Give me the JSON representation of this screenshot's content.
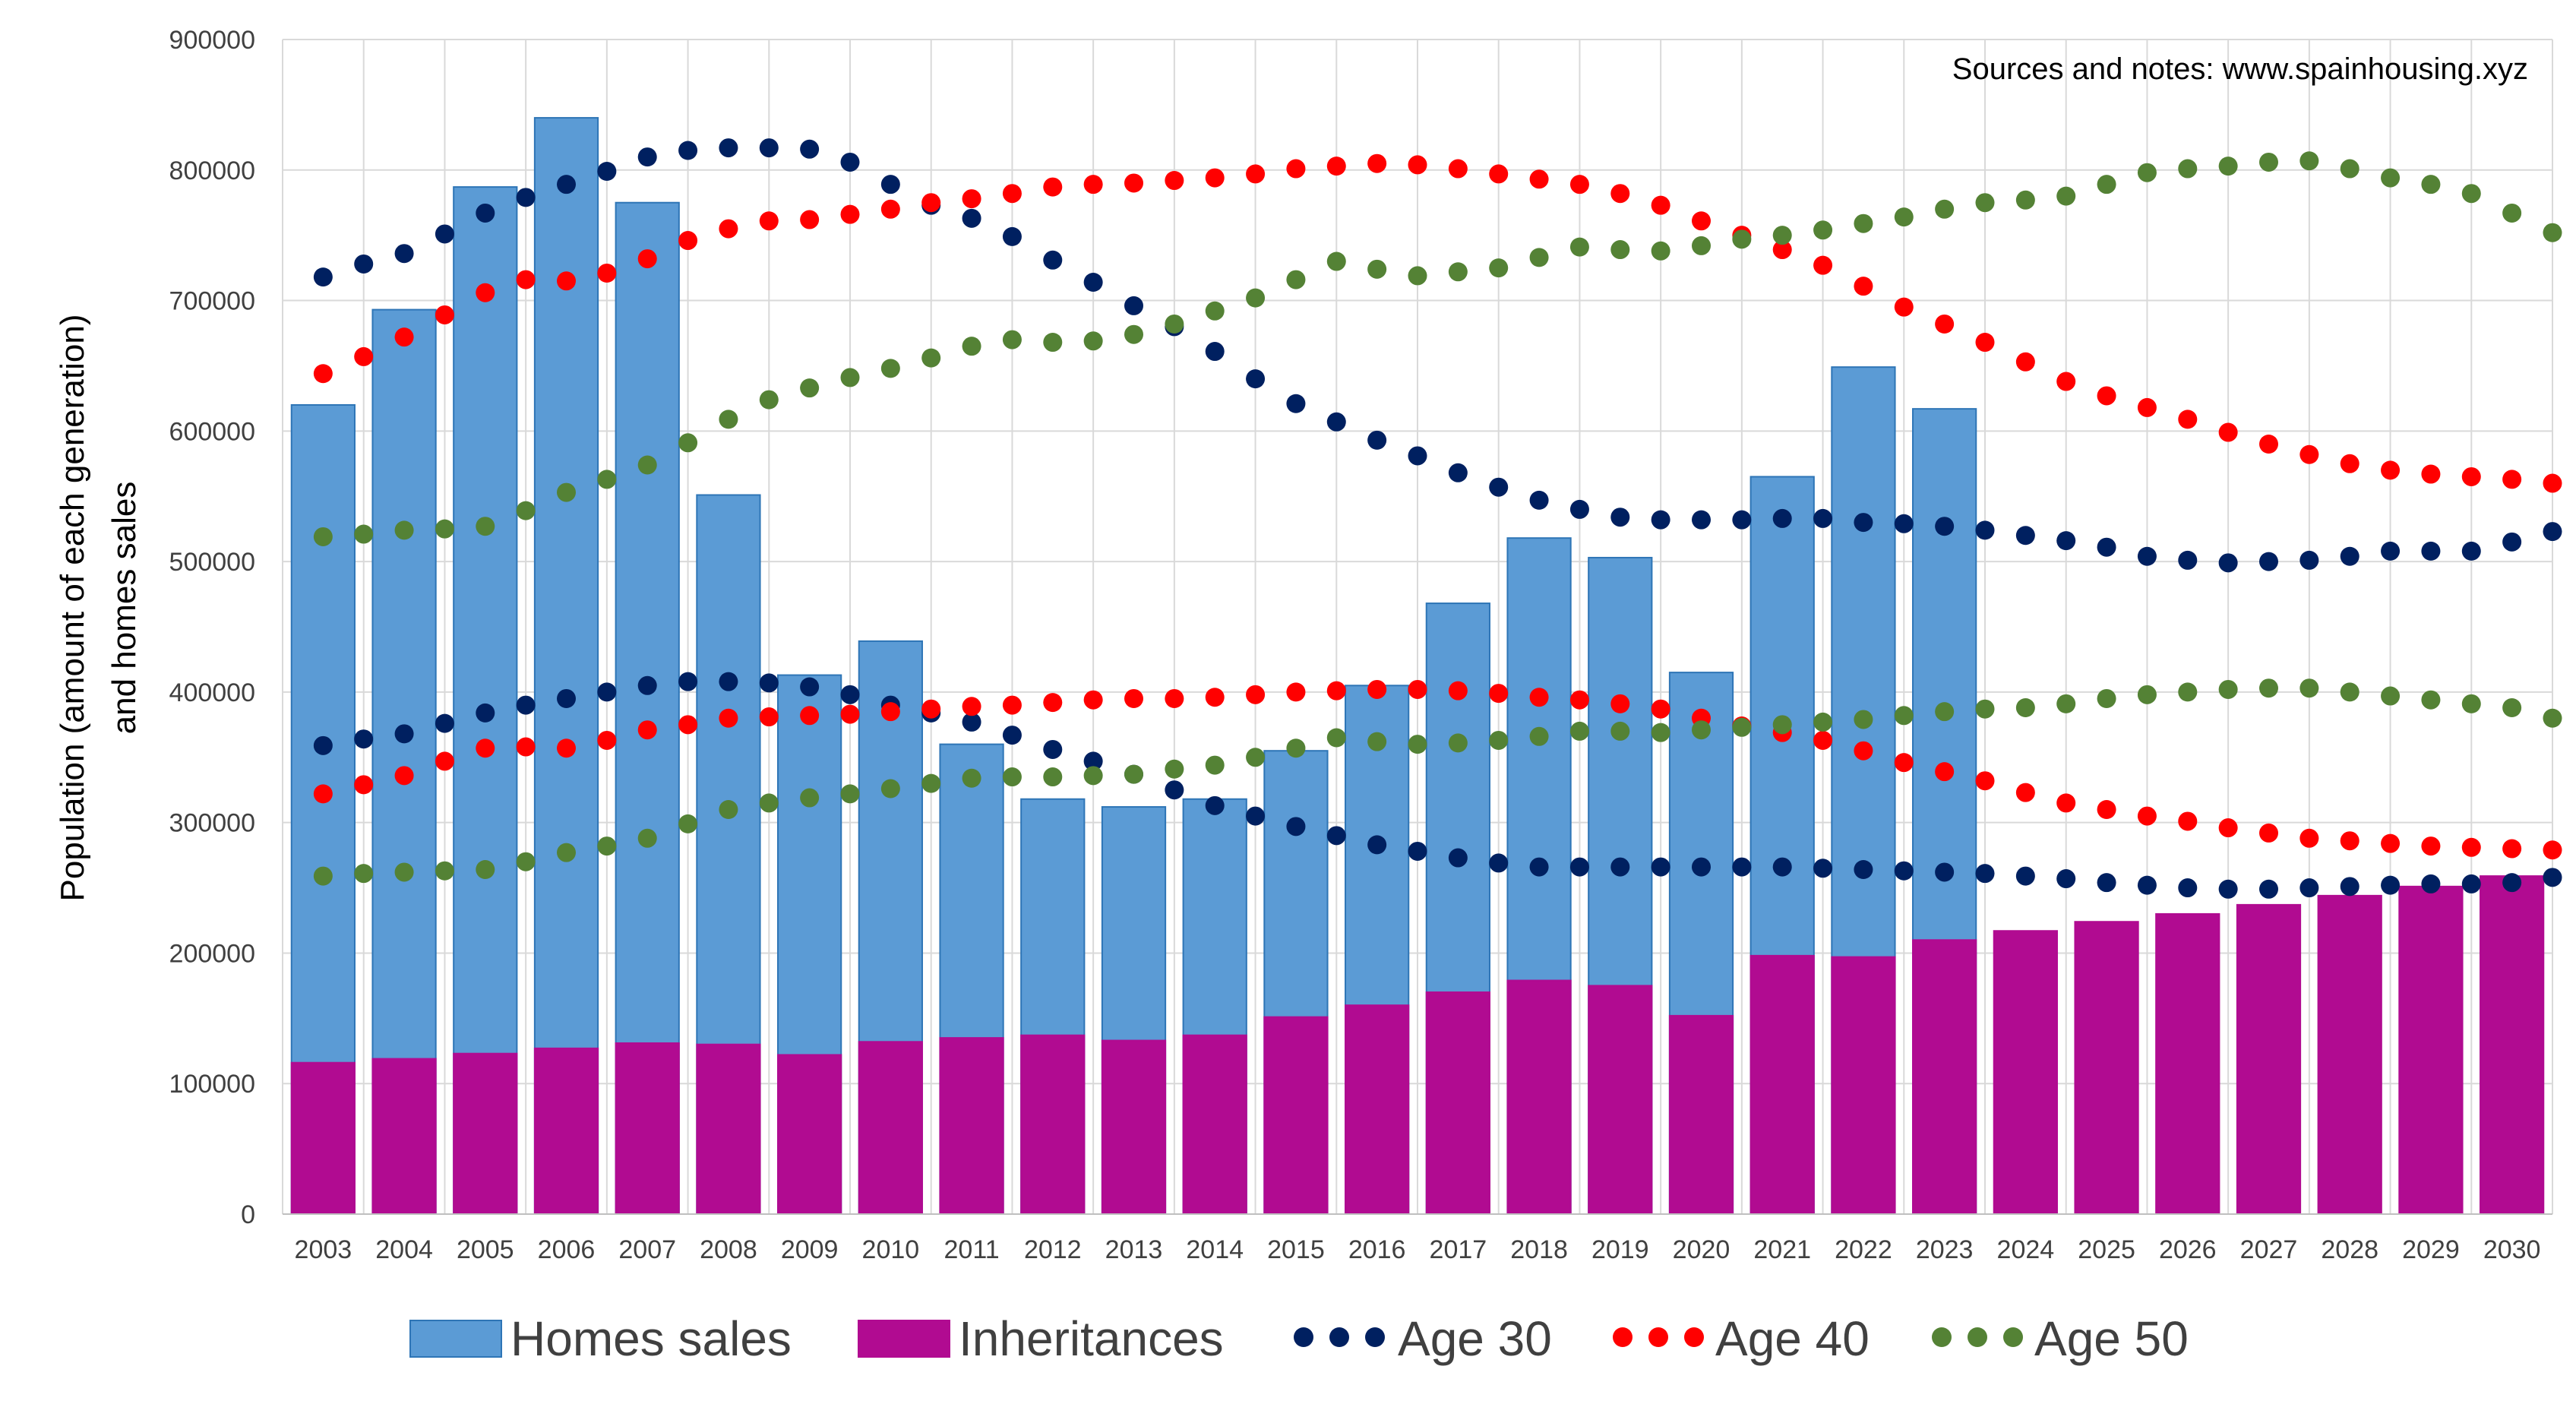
{
  "chart_data": {
    "type": "bar",
    "note": "Sources and notes: www.spainhousing.xyz",
    "ylabel_line1": "Population (amount of each generation)",
    "ylabel_line2": "and homes sales",
    "xlabel": "",
    "ylim": [
      0,
      900000
    ],
    "yticks": [
      "0",
      "100000",
      "200000",
      "300000",
      "400000",
      "500000",
      "600000",
      "700000",
      "800000",
      "900000"
    ],
    "categories": [
      "2003",
      "2004",
      "2005",
      "2006",
      "2007",
      "2008",
      "2009",
      "2010",
      "2011",
      "2012",
      "2013",
      "2014",
      "2015",
      "2016",
      "2017",
      "2018",
      "2019",
      "2020",
      "2021",
      "2022",
      "2023",
      "2024",
      "2025",
      "2026",
      "2027",
      "2028",
      "2029",
      "2030"
    ],
    "grid": "horizontal and vertical",
    "legend_position": "bottom",
    "bars": [
      {
        "name": "Homes sales",
        "color": "#5b9bd5",
        "values": [
          620000,
          693000,
          787000,
          840000,
          775000,
          551000,
          413000,
          439000,
          360000,
          318000,
          312000,
          318000,
          355000,
          405000,
          468000,
          518000,
          503000,
          415000,
          565000,
          649000,
          617000,
          null,
          null,
          null,
          null,
          null,
          null,
          null
        ]
      },
      {
        "name": "Inheritances",
        "color": "#b10b91",
        "values": [
          116000,
          119000,
          123000,
          127000,
          131000,
          130000,
          122000,
          132000,
          135000,
          137000,
          133000,
          137000,
          151000,
          160000,
          170000,
          179000,
          175000,
          152000,
          198000,
          197000,
          210000,
          217000,
          224000,
          230000,
          237000,
          244000,
          251000,
          259000
        ]
      }
    ],
    "dot_series": [
      {
        "name": "Age 30",
        "color": "#002060",
        "upper": [
          718000,
          728000,
          736000,
          751000,
          767000,
          779000,
          789000,
          799000,
          810000,
          815000,
          817000,
          817000,
          816000,
          806000,
          789000,
          773000,
          763000,
          749000,
          731000,
          714000,
          696000,
          680000,
          661000,
          640000,
          621000,
          607000,
          593000,
          581000,
          568000,
          557000,
          547000,
          540000,
          534000,
          532000,
          532000,
          532000,
          533000,
          533000,
          530000,
          529000,
          527000,
          524000,
          520000,
          516000,
          511000,
          504000,
          501000,
          499000,
          500000,
          501000,
          504000,
          508000,
          508000,
          508000,
          515000,
          523000
        ],
        "lower": [
          359000,
          364000,
          368000,
          376000,
          384000,
          390000,
          395000,
          400000,
          405000,
          408000,
          408000,
          407000,
          404000,
          398000,
          390000,
          384000,
          377000,
          367000,
          356000,
          347000,
          337000,
          325000,
          313000,
          305000,
          297000,
          290000,
          283000,
          278000,
          273000,
          269000,
          266000,
          266000,
          266000,
          266000,
          266000,
          266000,
          266000,
          265000,
          264000,
          263000,
          262000,
          261000,
          259000,
          257000,
          254000,
          252000,
          250000,
          249000,
          249000,
          250000,
          251000,
          252000,
          253000,
          253000,
          254000,
          258000
        ]
      },
      {
        "name": "Age 40",
        "color": "#ff0000",
        "upper": [
          644000,
          657000,
          672000,
          689000,
          706000,
          716000,
          715000,
          721000,
          732000,
          746000,
          755000,
          761000,
          762000,
          766000,
          770000,
          775000,
          778000,
          782000,
          787000,
          789000,
          790000,
          792000,
          794000,
          797000,
          801000,
          803000,
          805000,
          804000,
          801000,
          797000,
          793000,
          789000,
          782000,
          773000,
          761000,
          750000,
          739000,
          727000,
          711000,
          695000,
          682000,
          668000,
          653000,
          638000,
          627000,
          618000,
          609000,
          599000,
          590000,
          582000,
          575000,
          570000,
          567000,
          565000,
          563000,
          560000
        ],
        "lower": [
          322000,
          329000,
          336000,
          347000,
          357000,
          358000,
          357000,
          363000,
          371000,
          375000,
          380000,
          381000,
          382000,
          383000,
          385000,
          387000,
          389000,
          390000,
          392000,
          394000,
          395000,
          395000,
          396000,
          398000,
          400000,
          401000,
          402000,
          402000,
          401000,
          399000,
          396000,
          394000,
          391000,
          387000,
          380000,
          374000,
          369000,
          363000,
          355000,
          346000,
          339000,
          332000,
          323000,
          315000,
          310000,
          305000,
          301000,
          296000,
          292000,
          288000,
          286000,
          284000,
          282000,
          281000,
          280000,
          279000
        ]
      },
      {
        "name": "Age 50",
        "color": "#548235",
        "upper": [
          519000,
          521000,
          524000,
          525000,
          527000,
          539000,
          553000,
          563000,
          574000,
          591000,
          609000,
          624000,
          633000,
          641000,
          648000,
          656000,
          665000,
          670000,
          668000,
          669000,
          674000,
          682000,
          692000,
          702000,
          716000,
          730000,
          724000,
          719000,
          722000,
          725000,
          733000,
          741000,
          739000,
          738000,
          742000,
          747000,
          750000,
          754000,
          759000,
          764000,
          770000,
          775000,
          777000,
          780000,
          789000,
          798000,
          801000,
          803000,
          806000,
          807000,
          801000,
          794000,
          789000,
          782000,
          767000,
          752000
        ],
        "lower": [
          259000,
          261000,
          262000,
          263000,
          264000,
          270000,
          277000,
          282000,
          288000,
          299000,
          310000,
          315000,
          319000,
          322000,
          326000,
          330000,
          334000,
          335000,
          335000,
          336000,
          337000,
          341000,
          344000,
          350000,
          357000,
          365000,
          362000,
          360000,
          361000,
          363000,
          366000,
          370000,
          370000,
          369000,
          371000,
          373000,
          375000,
          377000,
          379000,
          382000,
          385000,
          387000,
          388000,
          391000,
          395000,
          398000,
          400000,
          402000,
          403000,
          403000,
          400000,
          397000,
          394000,
          391000,
          388000,
          380000
        ]
      }
    ]
  },
  "legend": [
    {
      "name": "Homes sales",
      "symbol": "bar",
      "color": "#5b9bd5"
    },
    {
      "name": "Inheritances",
      "symbol": "bar",
      "color": "#b10b91"
    },
    {
      "name": "Age 30",
      "symbol": "dots",
      "color": "#002060"
    },
    {
      "name": "Age 40",
      "symbol": "dots",
      "color": "#ff0000"
    },
    {
      "name": "Age 50",
      "symbol": "dots",
      "color": "#548235"
    }
  ]
}
